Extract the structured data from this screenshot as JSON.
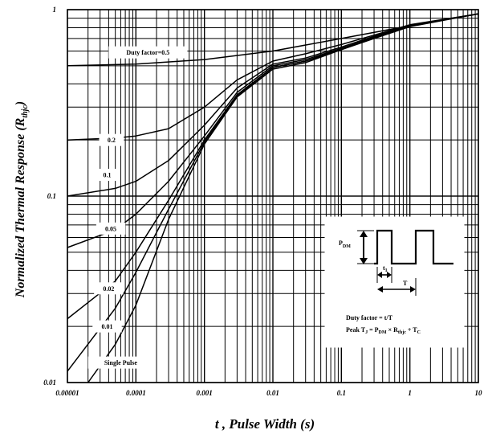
{
  "chart_data": {
    "type": "line",
    "x_scale": "log",
    "y_scale": "log",
    "xlim": [
      1e-05,
      10
    ],
    "ylim": [
      0.01,
      1
    ],
    "grid": true,
    "xlabel": "t , Pulse Width (s)",
    "ylabel_main": "Normalized Thermal Response (R",
    "ylabel_sub": "thjc",
    "ylabel_close": ")",
    "x_ticks": [
      {
        "v": 1e-05,
        "label": "0.00001"
      },
      {
        "v": 0.0001,
        "label": "0.0001"
      },
      {
        "v": 0.001,
        "label": "0.001"
      },
      {
        "v": 0.01,
        "label": "0.01"
      },
      {
        "v": 0.1,
        "label": "0.1"
      },
      {
        "v": 1,
        "label": "1"
      },
      {
        "v": 10,
        "label": "10"
      }
    ],
    "y_ticks": [
      {
        "v": 0.01,
        "label": "0.01"
      },
      {
        "v": 0.1,
        "label": "0.1"
      },
      {
        "v": 1,
        "label": "1"
      }
    ],
    "series": [
      {
        "name": "Duty factor=0.5",
        "x": [
          1e-05,
          0.0001,
          0.001,
          0.01,
          0.1,
          1,
          10
        ],
        "y": [
          0.5,
          0.51,
          0.54,
          0.6,
          0.7,
          0.82,
          0.95
        ]
      },
      {
        "name": "0.2",
        "x": [
          1e-05,
          5e-05,
          0.0001,
          0.0003,
          0.001,
          0.003,
          0.01,
          0.03,
          0.1,
          0.3,
          1,
          10
        ],
        "y": [
          0.2,
          0.205,
          0.21,
          0.23,
          0.3,
          0.42,
          0.53,
          0.58,
          0.65,
          0.73,
          0.83,
          0.95
        ]
      },
      {
        "name": "0.1",
        "x": [
          1e-05,
          5e-05,
          0.0001,
          0.0003,
          0.001,
          0.003,
          0.01,
          0.03,
          0.1,
          0.3,
          1,
          10
        ],
        "y": [
          0.1,
          0.11,
          0.12,
          0.155,
          0.24,
          0.38,
          0.51,
          0.55,
          0.63,
          0.72,
          0.82,
          0.95
        ]
      },
      {
        "name": "0.05",
        "x": [
          1e-05,
          5e-05,
          0.0001,
          0.0003,
          0.001,
          0.003,
          0.01,
          0.03,
          0.1,
          0.3,
          1,
          10
        ],
        "y": [
          0.053,
          0.066,
          0.08,
          0.12,
          0.21,
          0.36,
          0.5,
          0.54,
          0.62,
          0.71,
          0.82,
          0.95
        ]
      },
      {
        "name": "0.02",
        "x": [
          1e-05,
          5e-05,
          0.0001,
          0.0003,
          0.001,
          0.003,
          0.01,
          0.03,
          0.1,
          0.3,
          1,
          10
        ],
        "y": [
          0.022,
          0.035,
          0.05,
          0.095,
          0.2,
          0.35,
          0.49,
          0.53,
          0.62,
          0.71,
          0.82,
          0.95
        ]
      },
      {
        "name": "0.01",
        "x": [
          1e-05,
          5e-05,
          0.0001,
          0.0003,
          0.001,
          0.003,
          0.01,
          0.03,
          0.1,
          0.3,
          1,
          10
        ],
        "y": [
          0.0115,
          0.025,
          0.039,
          0.085,
          0.195,
          0.345,
          0.49,
          0.53,
          0.61,
          0.71,
          0.82,
          0.95
        ]
      },
      {
        "name": "Single Pulse",
        "x": [
          2e-05,
          5e-05,
          0.0001,
          0.0003,
          0.001,
          0.003,
          0.01,
          0.03,
          0.1,
          0.3,
          1,
          10
        ],
        "y": [
          0.01,
          0.016,
          0.026,
          0.075,
          0.19,
          0.34,
          0.48,
          0.52,
          0.61,
          0.7,
          0.81,
          0.95
        ]
      }
    ],
    "curve_labels": [
      {
        "text": "Duty factor=0.5",
        "x": 0.00015,
        "y": 0.59
      },
      {
        "text": "0.2",
        "x": 4.4e-05,
        "y": 0.2
      },
      {
        "text": "0.1",
        "x": 3.8e-05,
        "y": 0.13
      },
      {
        "text": "0.05",
        "x": 4.3e-05,
        "y": 0.067
      },
      {
        "text": "0.02",
        "x": 4e-05,
        "y": 0.032
      },
      {
        "text": "0.01",
        "x": 3.8e-05,
        "y": 0.02
      },
      {
        "text": "Single Pulse",
        "x": 6e-05,
        "y": 0.0128
      }
    ],
    "inset": {
      "pdm_main": "P",
      "pdm_sub": "DM",
      "t1_main": "t",
      "t1_sub": "1",
      "T_label": "T",
      "duty_text": "Duty factor = t/T",
      "peak_parts": [
        "Peak T",
        "J",
        " = P",
        "DM",
        " × R",
        "thjc",
        " + T",
        "C"
      ]
    }
  }
}
